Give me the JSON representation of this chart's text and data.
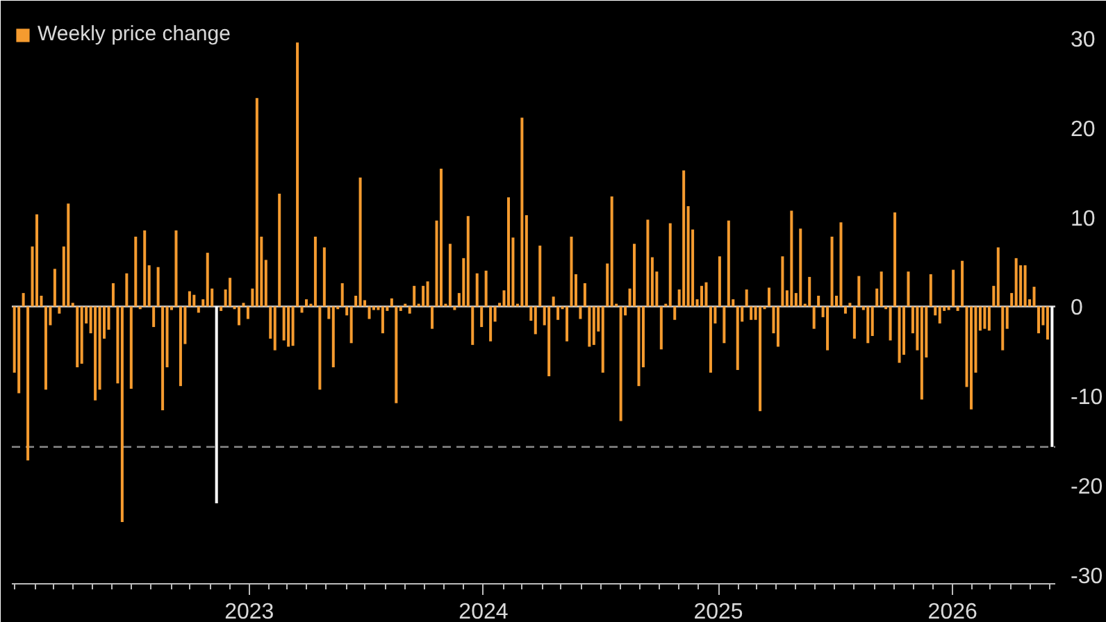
{
  "chart_data": {
    "type": "bar",
    "x": [
      "2021-12-31",
      "2022-01-07",
      "2022-01-14",
      "2022-01-21",
      "2022-01-28",
      "2022-02-04",
      "2022-02-11",
      "2022-02-18",
      "2022-02-25",
      "2022-03-04",
      "2022-03-11",
      "2022-03-18",
      "2022-03-25",
      "2022-04-01",
      "2022-04-08",
      "2022-04-15",
      "2022-04-22",
      "2022-04-29",
      "2022-05-06",
      "2022-05-13",
      "2022-05-20",
      "2022-05-27",
      "2022-06-03",
      "2022-06-10",
      "2022-06-17",
      "2022-06-24",
      "2022-07-01",
      "2022-07-08",
      "2022-07-15",
      "2022-07-22",
      "2022-07-29",
      "2022-08-05",
      "2022-08-12",
      "2022-08-19",
      "2022-08-26",
      "2022-09-02",
      "2022-09-09",
      "2022-09-16",
      "2022-09-23",
      "2022-09-30",
      "2022-10-07",
      "2022-10-14",
      "2022-10-21",
      "2022-10-28",
      "2022-11-04",
      "2022-11-11",
      "2022-11-18",
      "2022-11-25",
      "2022-12-02",
      "2022-12-09",
      "2022-12-16",
      "2022-12-23",
      "2022-12-30",
      "2023-01-06",
      "2023-01-13",
      "2023-01-20",
      "2023-01-27",
      "2023-02-03",
      "2023-02-10",
      "2023-02-17",
      "2023-02-24",
      "2023-03-03",
      "2023-03-10",
      "2023-03-17",
      "2023-03-24",
      "2023-03-31",
      "2023-04-07",
      "2023-04-14",
      "2023-04-21",
      "2023-04-28",
      "2023-05-05",
      "2023-05-12",
      "2023-05-19",
      "2023-05-26",
      "2023-06-02",
      "2023-06-09",
      "2023-06-16",
      "2023-06-23",
      "2023-06-30",
      "2023-07-07",
      "2023-07-14",
      "2023-07-21",
      "2023-07-28",
      "2023-08-04",
      "2023-08-11",
      "2023-08-18",
      "2023-08-25",
      "2023-09-01",
      "2023-09-08",
      "2023-09-15",
      "2023-09-22",
      "2023-09-29",
      "2023-10-06",
      "2023-10-13",
      "2023-10-20",
      "2023-10-27",
      "2023-11-03",
      "2023-11-10",
      "2023-11-17",
      "2023-11-24",
      "2023-12-01",
      "2023-12-08",
      "2023-12-15",
      "2023-12-22",
      "2023-12-29",
      "2024-01-05",
      "2024-01-12",
      "2024-01-19",
      "2024-01-26",
      "2024-02-02",
      "2024-02-09",
      "2024-02-16",
      "2024-02-23",
      "2024-03-01",
      "2024-03-08",
      "2024-03-15",
      "2024-03-22",
      "2024-03-29",
      "2024-04-05",
      "2024-04-12",
      "2024-04-19",
      "2024-04-26",
      "2024-05-03",
      "2024-05-10",
      "2024-05-17",
      "2024-05-24",
      "2024-05-31",
      "2024-06-07",
      "2024-06-14",
      "2024-06-21",
      "2024-06-28",
      "2024-07-05",
      "2024-07-12",
      "2024-07-19",
      "2024-07-26",
      "2024-08-02",
      "2024-08-09",
      "2024-08-16",
      "2024-08-23",
      "2024-08-30",
      "2024-09-06",
      "2024-09-13",
      "2024-09-20",
      "2024-09-27",
      "2024-10-04",
      "2024-10-11",
      "2024-10-18",
      "2024-10-25",
      "2024-11-01",
      "2024-11-08",
      "2024-11-15",
      "2024-11-22",
      "2024-11-29",
      "2024-12-06",
      "2024-12-13",
      "2024-12-20",
      "2024-12-27",
      "2025-01-03",
      "2025-01-10",
      "2025-01-17",
      "2025-01-24",
      "2025-01-31",
      "2025-02-07",
      "2025-02-14",
      "2025-02-21",
      "2025-02-28",
      "2025-03-07",
      "2025-03-14",
      "2025-03-21",
      "2025-03-28",
      "2025-04-04",
      "2025-04-11",
      "2025-04-18",
      "2025-04-25",
      "2025-05-02",
      "2025-05-09",
      "2025-05-16",
      "2025-05-23",
      "2025-05-30",
      "2025-06-06",
      "2025-06-13",
      "2025-06-20",
      "2025-06-27",
      "2025-07-04",
      "2025-07-11",
      "2025-07-18",
      "2025-07-25",
      "2025-08-01",
      "2025-08-08",
      "2025-08-15",
      "2025-08-22",
      "2025-08-29",
      "2025-09-05",
      "2025-09-12",
      "2025-09-19",
      "2025-09-26",
      "2025-10-03",
      "2025-10-10",
      "2025-10-17",
      "2025-10-24",
      "2025-10-31",
      "2025-11-07",
      "2025-11-14",
      "2025-11-21",
      "2025-11-28",
      "2025-12-05",
      "2025-12-12",
      "2025-12-19",
      "2025-12-26",
      "2026-01-02",
      "2026-01-09",
      "2026-01-16",
      "2026-01-23",
      "2026-01-30",
      "2026-02-06",
      "2026-02-13",
      "2026-02-20",
      "2026-02-27",
      "2026-03-06",
      "2026-03-13",
      "2026-03-20",
      "2026-03-27",
      "2026-04-03",
      "2026-04-10",
      "2026-04-17",
      "2026-04-24",
      "2026-05-01",
      "2026-05-08",
      "2026-05-15",
      "2026-05-22",
      "2026-05-29"
    ],
    "series": [
      {
        "name": "Weekly price change",
        "color": "#f59b2f",
        "values": [
          -7.4,
          -9.7,
          1.5,
          -17.2,
          6.7,
          10.3,
          1.2,
          -9.3,
          -2.1,
          4.2,
          -0.8,
          6.7,
          11.5,
          0.4,
          -6.8,
          -6.4,
          -1.9,
          -3.0,
          -10.5,
          -9.3,
          -3.6,
          -2.6,
          2.6,
          -8.6,
          -24.1,
          3.7,
          -9.2,
          7.8,
          -0.3,
          8.5,
          4.6,
          -2.3,
          4.4,
          -11.6,
          -6.8,
          -0.4,
          8.5,
          -8.9,
          -4.2,
          1.7,
          1.3,
          -0.7,
          0.8,
          6.0,
          2.0,
          null,
          -0.5,
          1.9,
          3.2,
          -0.3,
          -2.1,
          0.4,
          -1.4,
          2.0,
          23.3,
          7.8,
          5.2,
          -3.6,
          -4.9,
          12.6,
          -3.8,
          -4.5,
          -4.4,
          29.5,
          -0.7,
          0.8,
          0.3,
          7.8,
          -9.3,
          6.6,
          -1.4,
          -6.8,
          -0.3,
          2.6,
          -1.0,
          -4.1,
          1.2,
          14.4,
          0.7,
          -1.4,
          -0.4,
          -0.4,
          -3.0,
          -0.5,
          0.9,
          -10.8,
          -0.5,
          0.3,
          -0.8,
          2.3,
          0.3,
          2.3,
          2.8,
          -2.5,
          9.6,
          15.4,
          0.3,
          7.0,
          -0.4,
          1.5,
          5.4,
          10.1,
          -4.3,
          3.7,
          -2.3,
          4.0,
          -3.9,
          -1.7,
          0.4,
          1.8,
          12.2,
          7.7,
          0.3,
          21.1,
          10.2,
          -1.6,
          -3.1,
          6.8,
          -2.1,
          -7.8,
          1.1,
          -1.5,
          -0.3,
          -3.9,
          7.8,
          3.6,
          -1.4,
          2.6,
          -4.5,
          -4.3,
          -2.8,
          -7.4,
          4.8,
          12.3,
          0.3,
          -12.8,
          -1.0,
          2.0,
          7.0,
          -8.9,
          -6.8,
          9.7,
          5.5,
          3.9,
          -4.8,
          0.3,
          9.3,
          -1.5,
          1.9,
          15.2,
          11.2,
          8.6,
          0.8,
          2.3,
          2.7,
          -7.4,
          -1.9,
          5.6,
          -4.1,
          9.6,
          0.8,
          -7.1,
          -1.7,
          1.9,
          -1.5,
          -1.5,
          -11.7,
          -0.3,
          2.1,
          -3.0,
          -4.5,
          5.6,
          1.8,
          10.7,
          1.5,
          8.7,
          0.3,
          3.3,
          -2.5,
          1.2,
          -1.2,
          -4.9,
          7.8,
          1.2,
          9.4,
          -0.8,
          0.4,
          -3.6,
          3.4,
          -0.4,
          -4.1,
          -3.3,
          2.0,
          3.9,
          -0.3,
          -3.8,
          10.5,
          -6.3,
          -5.4,
          3.9,
          -3.0,
          -4.9,
          -10.4,
          -5.7,
          3.6,
          -1.0,
          -1.9,
          -0.5,
          -0.4,
          4.1,
          -0.5,
          5.1,
          -9.0,
          -11.5,
          -7.4,
          -2.7,
          -2.5,
          -2.7,
          2.3,
          6.6,
          -4.9,
          -2.5,
          1.5,
          5.4,
          4.6,
          4.6,
          0.8,
          2.2,
          -3.0,
          -2.1,
          -3.7
        ]
      },
      {
        "color": "#ffffff",
        "x": [
          "2022-11-11",
          "2026-06-05"
        ],
        "values": [
          -22.0,
          -15.7
        ]
      }
    ],
    "xlim": [
      "2021-12-27",
      "2026-06-10"
    ],
    "xticks": [
      {
        "value": "2022-01",
        "label": null
      },
      {
        "value": "2022-02",
        "label": null
      },
      {
        "value": "2022-03",
        "label": null
      },
      {
        "value": "2022-04",
        "label": null
      },
      {
        "value": "2022-05",
        "label": null
      },
      {
        "value": "2022-06",
        "label": null
      },
      {
        "value": "2022-07",
        "label": null
      },
      {
        "value": "2022-08",
        "label": null
      },
      {
        "value": "2022-09",
        "label": null
      },
      {
        "value": "2022-10",
        "label": null
      },
      {
        "value": "2022-11",
        "label": null
      },
      {
        "value": "2022-12",
        "label": null
      },
      {
        "value": "2023-01",
        "label": "2023"
      },
      {
        "value": "2023-02",
        "label": null
      },
      {
        "value": "2023-03",
        "label": null
      },
      {
        "value": "2023-04",
        "label": null
      },
      {
        "value": "2023-05",
        "label": null
      },
      {
        "value": "2023-06",
        "label": null
      },
      {
        "value": "2023-07",
        "label": null
      },
      {
        "value": "2023-08",
        "label": null
      },
      {
        "value": "2023-09",
        "label": null
      },
      {
        "value": "2023-10",
        "label": null
      },
      {
        "value": "2023-11",
        "label": null
      },
      {
        "value": "2023-12",
        "label": null
      },
      {
        "value": "2024-01",
        "label": "2024"
      },
      {
        "value": "2024-02",
        "label": null
      },
      {
        "value": "2024-03",
        "label": null
      },
      {
        "value": "2024-04",
        "label": null
      },
      {
        "value": "2024-05",
        "label": null
      },
      {
        "value": "2024-06",
        "label": null
      },
      {
        "value": "2024-07",
        "label": null
      },
      {
        "value": "2024-08",
        "label": null
      },
      {
        "value": "2024-09",
        "label": null
      },
      {
        "value": "2024-10",
        "label": null
      },
      {
        "value": "2024-11",
        "label": null
      },
      {
        "value": "2024-12",
        "label": null
      },
      {
        "value": "2025-01",
        "label": "2025"
      },
      {
        "value": "2025-02",
        "label": null
      },
      {
        "value": "2025-03",
        "label": null
      },
      {
        "value": "2025-04",
        "label": null
      },
      {
        "value": "2025-05",
        "label": null
      },
      {
        "value": "2025-06",
        "label": null
      },
      {
        "value": "2025-07",
        "label": null
      },
      {
        "value": "2025-08",
        "label": null
      },
      {
        "value": "2025-09",
        "label": null
      },
      {
        "value": "2025-10",
        "label": null
      },
      {
        "value": "2025-11",
        "label": null
      },
      {
        "value": "2025-12",
        "label": null
      },
      {
        "value": "2026-01",
        "label": "2026"
      },
      {
        "value": "2026-02",
        "label": null
      },
      {
        "value": "2026-03",
        "label": null
      },
      {
        "value": "2026-04",
        "label": null
      },
      {
        "value": "2026-05",
        "label": null
      },
      {
        "value": "2026-06",
        "label": null
      }
    ],
    "ylim": [
      -31,
      32
    ],
    "yticks": [
      30,
      20,
      10,
      0,
      -10,
      -20,
      -30
    ],
    "ref_lines": [
      {
        "axis": "y",
        "value": 0,
        "color": "#d8d8d8",
        "line_style": "solid"
      },
      {
        "axis": "y",
        "value": -15.7,
        "color": "#8a8a8a",
        "line_style": "dashed"
      }
    ],
    "legend": "top left"
  }
}
